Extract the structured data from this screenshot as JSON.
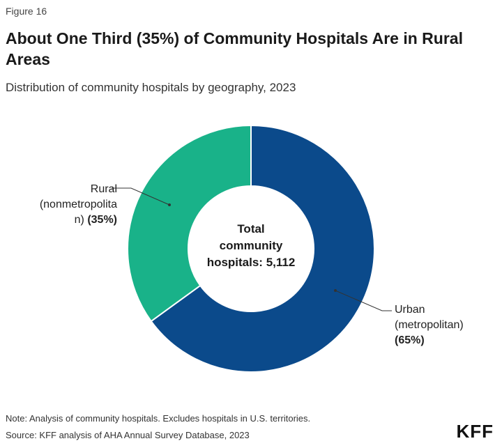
{
  "figure_label": "Figure 16",
  "title": "About One Third (35%) of Community Hospitals Are in Rural Areas",
  "subtitle": "Distribution of community hospitals by geography, 2023",
  "chart_data": {
    "type": "pie",
    "donut": true,
    "total": 5112,
    "center_label": [
      "Total",
      "community",
      "hospitals: 5,112"
    ],
    "slices": [
      {
        "name": "Urban (metropolitan)",
        "value": 65,
        "color": "#0b4a8b",
        "label_lines": [
          "Urban",
          "(metropolitan)"
        ],
        "pct_label": "(65%)"
      },
      {
        "name": "Rural (nonmetropolitan)",
        "value": 35,
        "color": "#19b289",
        "label_lines": [
          "Rural",
          "(nonmetropolita"
        ],
        "label_last_prefix": "n) ",
        "pct_label": "(35%)"
      }
    ]
  },
  "footer": {
    "note": "Note: Analysis of community hospitals. Excludes hospitals in U.S. territories.",
    "source": "Source: KFF analysis of AHA Annual Survey Database, 2023",
    "logo": "KFF"
  }
}
